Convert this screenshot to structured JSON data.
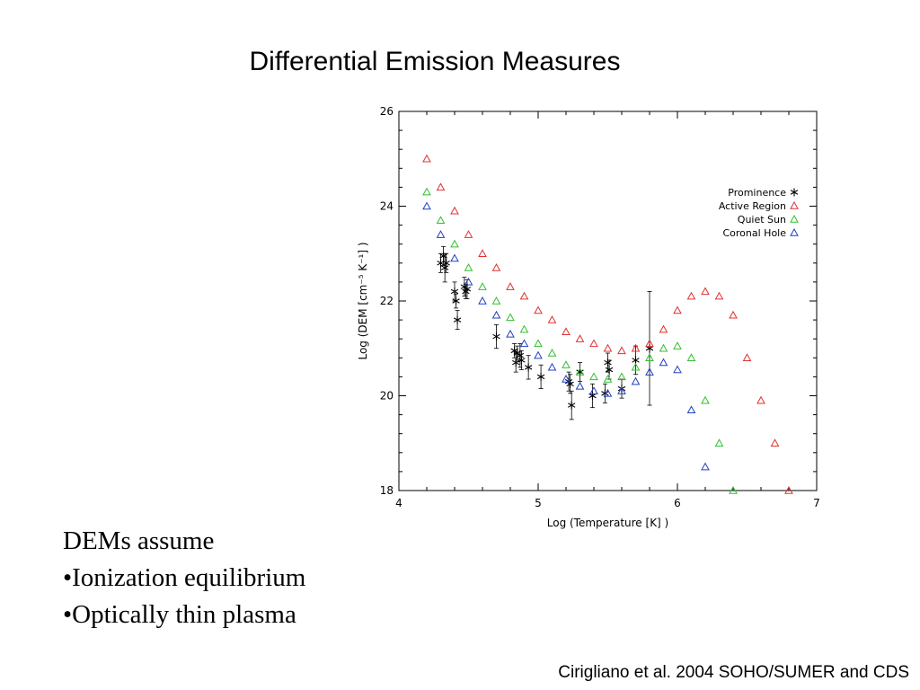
{
  "slide": {
    "title": "Differential Emission Measures",
    "bullets": [
      "DEMs assume",
      "•Ionization equilibrium",
      "•Optically thin plasma"
    ],
    "citation": "Cirigliano et al. 2004 SOHO/SUMER and CDS"
  },
  "chart_data": {
    "type": "scatter",
    "title": "",
    "xlabel": "Log (Temperature [K] )",
    "ylabel": "Log (DEM [cm⁻⁵ K⁻¹] )",
    "xlim": [
      4,
      7
    ],
    "ylim": [
      18,
      26
    ],
    "xticks": [
      4,
      5,
      6,
      7
    ],
    "yticks": [
      18,
      20,
      22,
      24,
      26
    ],
    "legend_position": "top-right",
    "series": [
      {
        "name": "Prominence",
        "marker": "asterisk",
        "color": "#000000",
        "x": [
          4.3,
          4.32,
          4.33,
          4.34,
          4.4,
          4.41,
          4.42,
          4.47,
          4.48,
          4.49,
          4.7,
          4.83,
          4.84,
          4.85,
          4.87,
          4.88,
          4.93,
          5.02,
          5.22,
          5.23,
          5.24,
          5.3,
          5.39,
          5.48,
          5.5,
          5.51,
          5.6,
          5.7,
          5.8
        ],
        "y": [
          22.8,
          22.95,
          22.7,
          22.8,
          22.2,
          22.0,
          21.6,
          22.3,
          22.2,
          22.25,
          21.25,
          20.95,
          20.7,
          20.9,
          20.85,
          20.75,
          20.6,
          20.4,
          20.3,
          20.25,
          19.8,
          20.5,
          20.0,
          20.05,
          20.7,
          20.55,
          20.15,
          20.75,
          21.0
        ],
        "err": [
          0.2,
          0.2,
          0.3,
          0.2,
          0.2,
          0.15,
          0.2,
          0.2,
          0.15,
          0.2,
          0.25,
          0.15,
          0.2,
          0.15,
          0.25,
          0.2,
          0.25,
          0.25,
          0.2,
          0.2,
          0.3,
          0.2,
          0.25,
          0.2,
          0.2,
          0.2,
          0.2,
          0.3,
          1.2
        ]
      },
      {
        "name": "Active Region",
        "marker": "triangle",
        "color": "#e03030",
        "x": [
          4.2,
          4.3,
          4.4,
          4.5,
          4.6,
          4.7,
          4.8,
          4.9,
          5.0,
          5.1,
          5.2,
          5.3,
          5.4,
          5.5,
          5.6,
          5.7,
          5.8,
          5.9,
          6.0,
          6.1,
          6.2,
          6.3,
          6.4,
          6.5,
          6.6,
          6.7,
          6.8
        ],
        "y": [
          25.0,
          24.4,
          23.9,
          23.4,
          23.0,
          22.7,
          22.3,
          22.1,
          21.8,
          21.6,
          21.35,
          21.2,
          21.1,
          21.0,
          20.95,
          21.0,
          21.1,
          21.4,
          21.8,
          22.1,
          22.2,
          22.1,
          21.7,
          20.8,
          19.9,
          19.0,
          18.0
        ]
      },
      {
        "name": "Quiet Sun",
        "marker": "triangle",
        "color": "#30c030",
        "x": [
          4.2,
          4.3,
          4.4,
          4.5,
          4.6,
          4.7,
          4.8,
          4.9,
          5.0,
          5.1,
          5.2,
          5.3,
          5.4,
          5.5,
          5.6,
          5.7,
          5.8,
          5.9,
          6.0,
          6.1,
          6.2,
          6.3,
          6.4
        ],
        "y": [
          24.3,
          23.7,
          23.2,
          22.7,
          22.3,
          22.0,
          21.65,
          21.4,
          21.1,
          20.9,
          20.65,
          20.5,
          20.4,
          20.35,
          20.4,
          20.6,
          20.8,
          21.0,
          21.05,
          20.8,
          19.9,
          19.0,
          18.0
        ]
      },
      {
        "name": "Coronal Hole",
        "marker": "triangle",
        "color": "#2040c0",
        "x": [
          4.2,
          4.3,
          4.4,
          4.5,
          4.6,
          4.7,
          4.8,
          4.9,
          5.0,
          5.1,
          5.2,
          5.3,
          5.4,
          5.5,
          5.6,
          5.7,
          5.8,
          5.9,
          6.0,
          6.1,
          6.2
        ],
        "y": [
          24.0,
          23.4,
          22.9,
          22.4,
          22.0,
          21.7,
          21.3,
          21.1,
          20.85,
          20.6,
          20.35,
          20.2,
          20.1,
          20.05,
          20.1,
          20.3,
          20.5,
          20.7,
          20.55,
          19.7,
          18.5
        ]
      }
    ]
  }
}
